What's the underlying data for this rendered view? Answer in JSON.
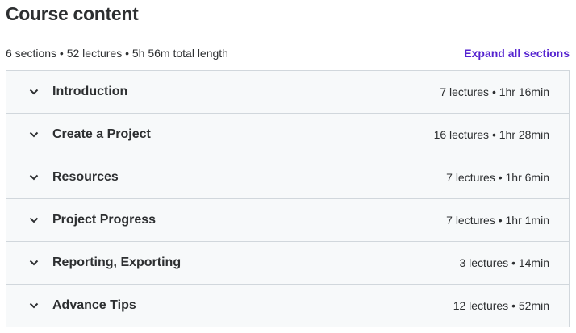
{
  "title": "Course content",
  "summary": "6 sections • 52 lectures • 5h 56m total length",
  "expand_label": "Expand all sections",
  "accent": "#5624d0",
  "sections": [
    {
      "title": "Introduction",
      "meta": "7 lectures • 1hr 16min"
    },
    {
      "title": "Create a Project",
      "meta": "16 lectures • 1hr 28min"
    },
    {
      "title": "Resources",
      "meta": "7 lectures • 1hr 6min"
    },
    {
      "title": "Project Progress",
      "meta": "7 lectures • 1hr 1min"
    },
    {
      "title": "Reporting, Exporting",
      "meta": "3 lectures • 14min"
    },
    {
      "title": "Advance Tips",
      "meta": "12 lectures • 52min"
    }
  ]
}
